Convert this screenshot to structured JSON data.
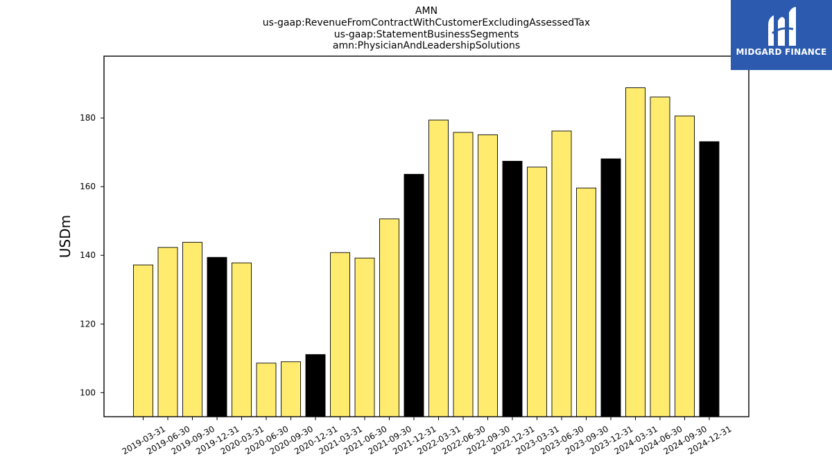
{
  "chart_data": {
    "type": "bar",
    "title_lines": [
      "AMN",
      "us-gaap:RevenueFromContractWithCustomerExcludingAssessedTax",
      "us-gaap:StatementBusinessSegments",
      "amn:PhysicianAndLeadershipSolutions"
    ],
    "ylabel": "USDm",
    "xlabel": "",
    "ylim": [
      93,
      198
    ],
    "yticks": [
      100,
      120,
      140,
      160,
      180
    ],
    "categories": [
      "2019-03-31",
      "2019-06-30",
      "2019-09-30",
      "2019-12-31",
      "2020-03-31",
      "2020-06-30",
      "2020-09-30",
      "2020-12-31",
      "2021-03-31",
      "2021-06-30",
      "2021-09-30",
      "2021-12-31",
      "2022-03-31",
      "2022-06-30",
      "2022-09-30",
      "2022-12-31",
      "2023-03-31",
      "2023-06-30",
      "2023-09-30",
      "2023-12-31",
      "2024-03-31",
      "2024-06-30",
      "2024-09-30",
      "2024-12-31"
    ],
    "values": [
      137.2,
      142.3,
      143.8,
      139.4,
      137.8,
      108.6,
      109.0,
      111.1,
      140.8,
      139.2,
      150.6,
      163.6,
      179.4,
      175.8,
      175.1,
      167.4,
      165.7,
      176.2,
      159.6,
      168.1,
      188.8,
      186.1,
      180.6,
      173.1
    ],
    "bar_colors": {
      "quarter": "#ffec6e",
      "year_end": "#000000"
    },
    "grid": false
  },
  "brand": {
    "name": "MIDGARD FINANCE",
    "background": "#2b5aae"
  }
}
